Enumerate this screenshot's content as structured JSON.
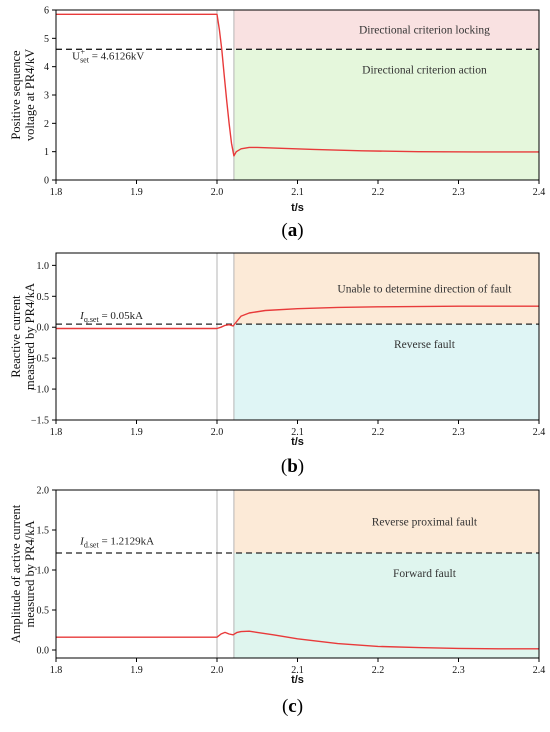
{
  "chart_data": [
    {
      "type": "line",
      "panel_label": "a",
      "xlabel": "t/s",
      "ylabel_lines": [
        "Positive sequence",
        "voltage at PR4/kV"
      ],
      "xlim": [
        1.8,
        2.4
      ],
      "ylim": [
        0,
        6
      ],
      "x_ticks": [
        "1.8",
        "1.9",
        "2.0",
        "2.1",
        "2.2",
        "2.3",
        "2.4"
      ],
      "y_ticks": [
        "0",
        "1",
        "2",
        "3",
        "4",
        "5",
        "6"
      ],
      "x_tick_values": [
        1.8,
        1.9,
        2.0,
        2.1,
        2.2,
        2.3,
        2.4
      ],
      "y_tick_values": [
        0,
        1,
        2,
        3,
        4,
        5,
        6
      ],
      "threshold": {
        "value": 4.6126,
        "label_main": "U",
        "label_sup": "+",
        "label_sub": "set",
        "label_rest": " = 4.6126kV",
        "label_at": [
          1.82,
          4.25
        ]
      },
      "region_upper_label": "Directional criterion locking",
      "region_lower_label": "Directional criterion action",
      "region_upper_color": "#f9e1e1",
      "region_lower_color": "#e5f7dc",
      "fault_times": [
        2.0,
        2.021
      ],
      "series": [
        {
          "color": "#e83a3a",
          "x": [
            1.8,
            1.9,
            2.0,
            2.003,
            2.006,
            2.009,
            2.012,
            2.015,
            2.018,
            2.021,
            2.024,
            2.03,
            2.04,
            2.05,
            2.08,
            2.12,
            2.18,
            2.25,
            2.32,
            2.4
          ],
          "y": [
            5.85,
            5.85,
            5.85,
            5.3,
            4.6,
            3.7,
            2.8,
            2.0,
            1.3,
            0.85,
            1.0,
            1.1,
            1.15,
            1.15,
            1.12,
            1.08,
            1.03,
            1.0,
            0.99,
            0.99
          ]
        }
      ]
    },
    {
      "type": "line",
      "panel_label": "b",
      "xlabel": "t/s",
      "ylabel_lines": [
        "Reactive current",
        "measured by PR4/kA"
      ],
      "xlim": [
        1.8,
        2.4
      ],
      "ylim": [
        -1.5,
        1.2
      ],
      "x_ticks": [
        "1.8",
        "1.9",
        "2.0",
        "2.1",
        "2.2",
        "2.3",
        "2.4"
      ],
      "y_ticks": [
        "−1.5",
        "−1.0",
        "−0.5",
        "0.0",
        "0.5",
        "1.0"
      ],
      "x_tick_values": [
        1.8,
        1.9,
        2.0,
        2.1,
        2.2,
        2.3,
        2.4
      ],
      "y_tick_values": [
        -1.5,
        -1.0,
        -0.5,
        0.0,
        0.5,
        1.0
      ],
      "threshold": {
        "value": 0.05,
        "label_main": "I",
        "label_sub": "q.set",
        "label_rest": " = 0.05kA",
        "label_at": [
          1.83,
          0.13
        ]
      },
      "region_upper_label": "Unable to determine direction of fault",
      "region_lower_label": "Reverse fault",
      "region_upper_color": "#fcead7",
      "region_lower_color": "#dff5f5",
      "fault_times": [
        2.0,
        2.021
      ],
      "series": [
        {
          "color": "#e83a3a",
          "x": [
            1.8,
            1.9,
            2.0,
            2.005,
            2.01,
            2.015,
            2.02,
            2.025,
            2.03,
            2.04,
            2.06,
            2.1,
            2.15,
            2.2,
            2.3,
            2.4
          ],
          "y": [
            -0.02,
            -0.02,
            -0.02,
            0.0,
            0.03,
            0.04,
            0.02,
            0.1,
            0.18,
            0.23,
            0.27,
            0.3,
            0.32,
            0.33,
            0.34,
            0.34
          ]
        }
      ]
    },
    {
      "type": "line",
      "panel_label": "c",
      "xlabel": "t/s",
      "ylabel_lines": [
        "Amplitude of active current",
        "measured by PR4/kA"
      ],
      "xlim": [
        1.8,
        2.4
      ],
      "ylim": [
        -0.1,
        2.0
      ],
      "x_ticks": [
        "1.8",
        "1.9",
        "2.0",
        "2.1",
        "2.2",
        "2.3",
        "2.4"
      ],
      "y_ticks": [
        "0.0",
        "0.5",
        "1.0",
        "1.5",
        "2.0"
      ],
      "x_tick_values": [
        1.8,
        1.9,
        2.0,
        2.1,
        2.2,
        2.3,
        2.4
      ],
      "y_tick_values": [
        0.0,
        0.5,
        1.0,
        1.5,
        2.0
      ],
      "threshold": {
        "value": 1.2129,
        "label_main": "I",
        "label_sub": "d.set",
        "label_rest": " = 1.2129kA",
        "label_at": [
          1.83,
          1.32
        ]
      },
      "region_upper_label": "Reverse proximal fault",
      "region_lower_label": "Forward fault",
      "region_upper_color": "#fcead7",
      "region_lower_color": "#dff5ee",
      "fault_times": [
        2.0,
        2.021
      ],
      "series": [
        {
          "color": "#e83a3a",
          "x": [
            1.8,
            1.9,
            2.0,
            2.005,
            2.01,
            2.015,
            2.02,
            2.025,
            2.03,
            2.04,
            2.05,
            2.07,
            2.1,
            2.15,
            2.2,
            2.25,
            2.3,
            2.35,
            2.4
          ],
          "y": [
            0.16,
            0.16,
            0.16,
            0.2,
            0.22,
            0.2,
            0.19,
            0.22,
            0.23,
            0.235,
            0.22,
            0.19,
            0.14,
            0.08,
            0.045,
            0.03,
            0.02,
            0.015,
            0.015
          ]
        }
      ]
    }
  ]
}
